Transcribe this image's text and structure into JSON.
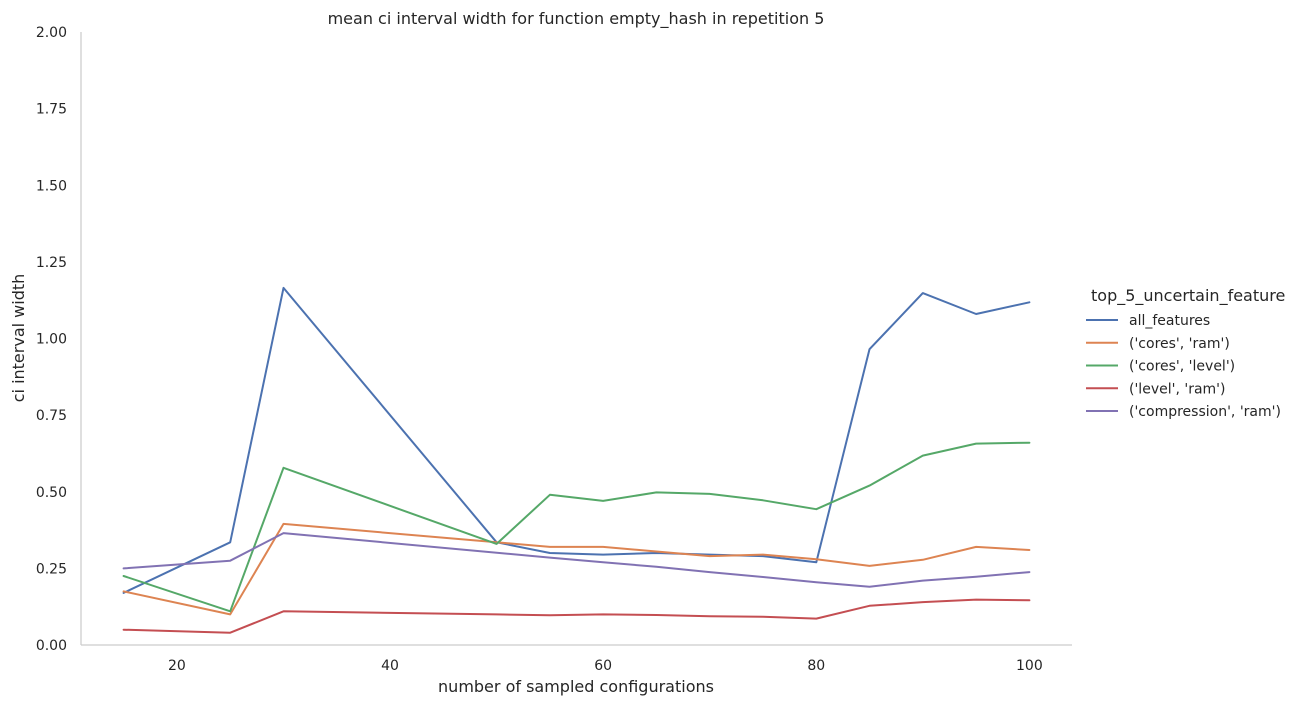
{
  "chart_data": {
    "type": "line",
    "title": "mean ci interval width for function empty_hash in repetition 5",
    "xlabel": "number of sampled configurations",
    "ylabel": "ci interval width",
    "xlim": [
      11,
      104
    ],
    "ylim": [
      0,
      2
    ],
    "xticks": [
      20,
      40,
      60,
      80,
      100
    ],
    "yticks": [
      0.0,
      0.25,
      0.5,
      0.75,
      1.0,
      1.25,
      1.5,
      1.75,
      2.0
    ],
    "ytick_labels": [
      "0.00",
      "0.25",
      "0.50",
      "0.75",
      "1.00",
      "1.25",
      "1.50",
      "1.75",
      "2.00"
    ],
    "grid": false,
    "legend_title": "top_5_uncertain_feature",
    "legend_position": "right",
    "series": [
      {
        "name": "all_features",
        "color": "#4c72b0",
        "x": [
          15,
          25,
          30,
          50,
          55,
          60,
          65,
          70,
          75,
          80,
          85,
          90,
          95,
          100
        ],
        "y": [
          0.17,
          0.335,
          1.165,
          0.335,
          0.3,
          0.295,
          0.3,
          0.295,
          0.29,
          0.27,
          0.965,
          1.148,
          1.08,
          1.118
        ]
      },
      {
        "name": "('cores', 'ram')",
        "color": "#dd8452",
        "x": [
          15,
          25,
          30,
          50,
          55,
          60,
          65,
          70,
          75,
          80,
          85,
          90,
          95,
          100
        ],
        "y": [
          0.175,
          0.1,
          0.395,
          0.335,
          0.32,
          0.32,
          0.305,
          0.29,
          0.295,
          0.28,
          0.258,
          0.278,
          0.32,
          0.31
        ]
      },
      {
        "name": "('cores', 'level')",
        "color": "#55a868",
        "x": [
          15,
          25,
          30,
          50,
          55,
          60,
          65,
          70,
          75,
          80,
          85,
          90,
          95,
          100
        ],
        "y": [
          0.225,
          0.11,
          0.578,
          0.33,
          0.49,
          0.47,
          0.498,
          0.493,
          0.472,
          0.443,
          0.52,
          0.618,
          0.657,
          0.66
        ]
      },
      {
        "name": "('level', 'ram')",
        "color": "#c44e52",
        "x": [
          15,
          25,
          30,
          50,
          55,
          60,
          65,
          70,
          75,
          80,
          85,
          90,
          95,
          100
        ],
        "y": [
          0.05,
          0.04,
          0.11,
          0.1,
          0.097,
          0.1,
          0.098,
          0.094,
          0.092,
          0.086,
          0.128,
          0.14,
          0.148,
          0.146
        ]
      },
      {
        "name": "('compression', 'ram')",
        "color": "#8172b3",
        "x": [
          15,
          25,
          30,
          55,
          60,
          65,
          70,
          75,
          80,
          85,
          90,
          95,
          100
        ],
        "y": [
          0.25,
          0.275,
          0.365,
          0.285,
          0.27,
          0.255,
          0.238,
          0.222,
          0.205,
          0.19,
          0.21,
          0.223,
          0.238
        ]
      }
    ]
  }
}
